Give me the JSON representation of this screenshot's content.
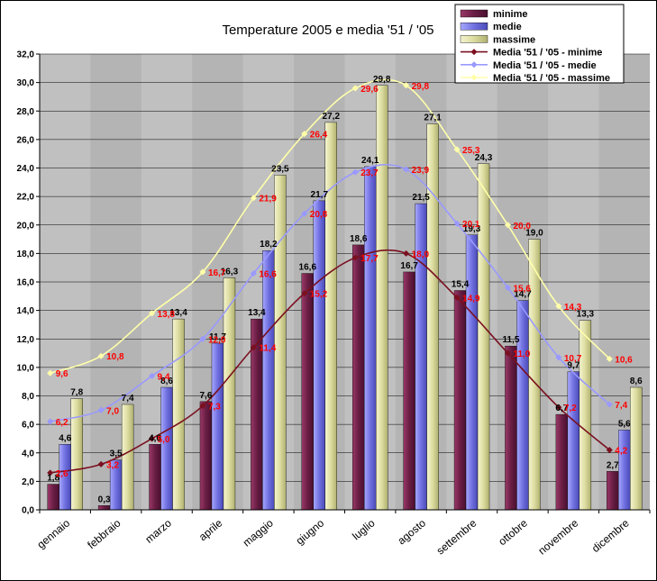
{
  "chart_data": {
    "type": "bar",
    "title": "Temperature 2005 e media '51 / '05",
    "xlabel": "",
    "ylabel": "",
    "ylim": [
      0,
      32
    ],
    "y_tick_step": 2,
    "y_tick_format": "comma-1-decimal",
    "grid": true,
    "legend_position": "top-right",
    "categories": [
      "gennaio",
      "febbraio",
      "marzo",
      "aprile",
      "maggio",
      "giugno",
      "luglio",
      "agosto",
      "settembre",
      "ottobre",
      "novembre",
      "dicembre"
    ],
    "bar_series": [
      {
        "name": "minime",
        "color": "#7a2850",
        "values": [
          1.8,
          0.3,
          4.6,
          7.6,
          13.4,
          16.6,
          18.6,
          16.7,
          15.4,
          11.5,
          6.7,
          2.7
        ]
      },
      {
        "name": "medie",
        "color": "#8888ee",
        "values": [
          4.6,
          3.5,
          8.6,
          11.7,
          18.2,
          21.7,
          24.1,
          21.5,
          19.3,
          14.7,
          9.7,
          5.6
        ]
      },
      {
        "name": "massime",
        "color": "#e6e6b0",
        "values": [
          7.8,
          7.4,
          13.4,
          16.3,
          23.5,
          27.2,
          29.8,
          27.1,
          24.3,
          19.0,
          13.3,
          8.6
        ]
      }
    ],
    "line_series": [
      {
        "name": "Media '51 / '05 - minime",
        "color": "#7a1020",
        "values": [
          2.6,
          3.2,
          5.0,
          7.3,
          11.4,
          15.2,
          17.7,
          18.0,
          14.9,
          11.0,
          7.2,
          4.2
        ]
      },
      {
        "name": "Media '51 / '05 - medie",
        "color": "#9999ff",
        "values": [
          6.2,
          7.0,
          9.4,
          12.0,
          16.6,
          20.8,
          23.7,
          23.9,
          20.1,
          15.6,
          10.7,
          7.4
        ]
      },
      {
        "name": "Media '51 / '05 - massime",
        "color": "#ffffaa",
        "values": [
          9.6,
          10.8,
          13.8,
          16.7,
          21.9,
          26.4,
          29.6,
          29.8,
          25.3,
          20.0,
          14.3,
          10.6
        ]
      }
    ]
  }
}
